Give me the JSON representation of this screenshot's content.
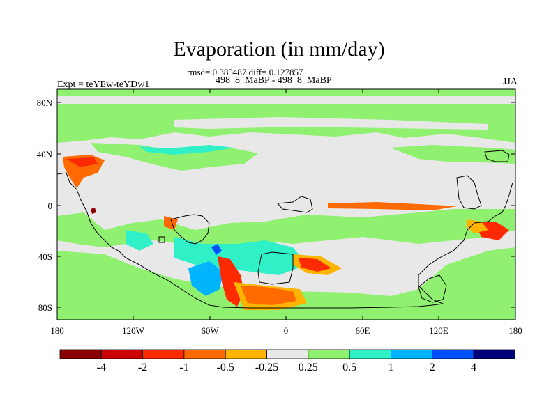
{
  "title": "Evaporation (in mm/day)",
  "stats": "rmsd= 0.385487 diff= 0.127857",
  "subtitle": "498_8_MaBP - 498_8_MaBP",
  "left_label": "Expt = teYEw-teYDw1",
  "right_label": "JJA",
  "y_axis_ticks": [
    "80N",
    "40N",
    "0",
    "40S",
    "80S"
  ],
  "x_axis_ticks": [
    "180",
    "120W",
    "60W",
    "0",
    "60E",
    "120E",
    "180"
  ],
  "colorbar": {
    "colors": [
      "#8b0000",
      "#cc0000",
      "#ff2a00",
      "#ff6a00",
      "#ffb400",
      "#e8e8e8",
      "#90f070",
      "#30f0c8",
      "#00b4ff",
      "#0050ff",
      "#00007a"
    ],
    "labels": [
      "-4",
      "-2",
      "-1",
      "-0.5",
      "-0.25",
      "0.25",
      "0.5",
      "1",
      "2",
      "4"
    ]
  }
}
